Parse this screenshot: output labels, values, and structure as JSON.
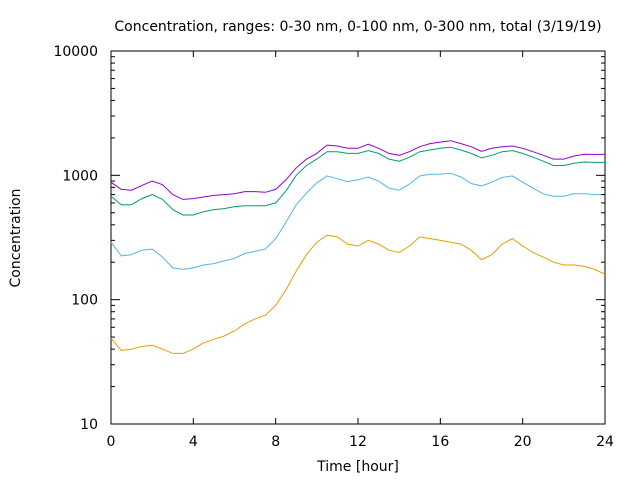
{
  "chart_data": {
    "type": "line",
    "title": "Concentration, ranges: 0-30 nm, 0-100 nm, 0-300 nm, total (3/19/19)",
    "xlabel": "Time [hour]",
    "ylabel": "Concentration",
    "xlim": [
      0,
      24
    ],
    "ylim": [
      10,
      10000
    ],
    "yscale": "log",
    "grid": false,
    "x_ticks": [
      0,
      4,
      8,
      12,
      16,
      20,
      24
    ],
    "x_tick_labels": [
      "0",
      "4",
      "8",
      "12",
      "16",
      "20",
      "24"
    ],
    "y_ticks": [
      10,
      100,
      1000,
      10000
    ],
    "y_tick_labels": [
      "10",
      "100",
      "1000",
      "10000"
    ],
    "x": [
      0,
      0.5,
      1,
      1.5,
      2,
      2.5,
      3,
      3.5,
      4,
      4.5,
      5,
      5.5,
      6,
      6.5,
      7,
      7.5,
      8,
      8.5,
      9,
      9.5,
      10,
      10.5,
      11,
      11.5,
      12,
      12.5,
      13,
      13.5,
      14,
      14.5,
      15,
      15.5,
      16,
      16.5,
      17,
      17.5,
      18,
      18.5,
      19,
      19.5,
      20,
      20.5,
      21,
      21.5,
      22,
      22.5,
      23,
      23.5,
      24
    ],
    "series": [
      {
        "color": "#e69f00",
        "values": [
          49,
          39,
          40,
          42,
          43,
          40,
          37,
          37,
          40,
          45,
          48,
          51,
          56,
          64,
          70,
          75,
          90,
          120,
          170,
          230,
          290,
          330,
          320,
          280,
          270,
          300,
          280,
          250,
          240,
          270,
          320,
          310,
          300,
          290,
          280,
          250,
          210,
          230,
          280,
          310,
          270,
          240,
          220,
          200,
          190,
          190,
          185,
          175,
          160
        ]
      },
      {
        "color": "#56b4e9",
        "values": [
          290,
          225,
          230,
          250,
          255,
          220,
          180,
          175,
          180,
          190,
          195,
          205,
          215,
          235,
          245,
          255,
          310,
          420,
          580,
          720,
          870,
          990,
          940,
          890,
          920,
          970,
          900,
          790,
          760,
          850,
          990,
          1020,
          1020,
          1040,
          970,
          860,
          820,
          880,
          960,
          990,
          880,
          790,
          710,
          680,
          680,
          710,
          710,
          700,
          700
        ]
      },
      {
        "color": "#009e73",
        "values": [
          680,
          580,
          580,
          650,
          700,
          640,
          530,
          480,
          480,
          510,
          530,
          540,
          560,
          570,
          570,
          570,
          600,
          750,
          1000,
          1200,
          1350,
          1550,
          1550,
          1500,
          1500,
          1580,
          1500,
          1350,
          1300,
          1400,
          1550,
          1600,
          1650,
          1680,
          1600,
          1500,
          1380,
          1450,
          1550,
          1580,
          1500,
          1400,
          1300,
          1200,
          1200,
          1250,
          1280,
          1270,
          1270
        ]
      },
      {
        "color": "#9400d3",
        "values": [
          880,
          770,
          760,
          830,
          900,
          840,
          700,
          640,
          650,
          670,
          690,
          700,
          710,
          740,
          740,
          730,
          770,
          920,
          1150,
          1350,
          1500,
          1750,
          1720,
          1650,
          1650,
          1780,
          1650,
          1500,
          1450,
          1550,
          1700,
          1800,
          1850,
          1900,
          1800,
          1700,
          1560,
          1650,
          1700,
          1720,
          1650,
          1550,
          1450,
          1350,
          1350,
          1430,
          1480,
          1470,
          1480
        ]
      }
    ]
  }
}
